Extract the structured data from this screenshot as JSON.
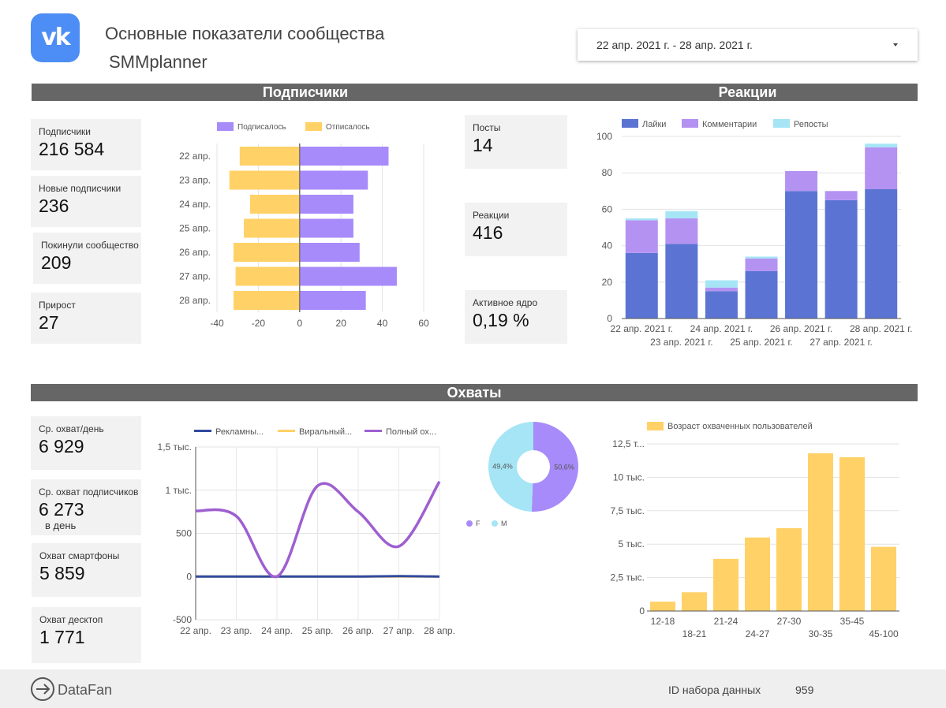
{
  "header": {
    "logo_text": "vk",
    "title": "Основные показатели сообщества",
    "subtitle": "SMMplanner",
    "date_range": "22 апр. 2021 г. - 28 апр. 2021 г."
  },
  "sections": {
    "subscribers": "Подписчики",
    "reactions": "Реакции",
    "reach": "Охваты"
  },
  "kpis_subscribers": [
    {
      "label": "Подписчики",
      "value": "216 584"
    },
    {
      "label": "Новые подписчики",
      "value": "236"
    },
    {
      "label": "Покинули сообщество",
      "value": "209"
    },
    {
      "label": "Прирост",
      "value": "27"
    }
  ],
  "kpis_posts": [
    {
      "label": "Посты",
      "value": "14"
    },
    {
      "label": "Реакции",
      "value": "416"
    },
    {
      "label": "Активное ядро",
      "value": "0,19 %"
    }
  ],
  "kpis_reach": [
    {
      "label": "Ср. охват/день",
      "value": "6 929"
    },
    {
      "label": "Ср. охват подписчиков",
      "value": "6 273",
      "suffix": "в день"
    },
    {
      "label": "Охват смартфоны",
      "value": "5 859"
    },
    {
      "label": "Охват десктоп",
      "value": "1 771"
    }
  ],
  "colors": {
    "purple": "#a78bfa",
    "yellow": "#ffd166",
    "blue": "#5b74d3",
    "light_purple": "#b492f2",
    "cyan": "#a5e5f5",
    "navy": "#2f4a9e",
    "line_purple": "#9e5fd0",
    "section_gray": "#666666"
  },
  "chart_data": [
    {
      "id": "subscribers_diverging",
      "type": "bar",
      "orientation": "horizontal",
      "categories": [
        "22 апр.",
        "23 апр.",
        "24 апр.",
        "25 апр.",
        "26 апр.",
        "27 апр.",
        "28 апр."
      ],
      "series": [
        {
          "name": "Подписалось",
          "values": [
            43,
            33,
            26,
            26,
            29,
            47,
            32
          ]
        },
        {
          "name": "Отписалось",
          "values": [
            -29,
            -34,
            -24,
            -27,
            -32,
            -31,
            -32
          ]
        }
      ],
      "xlim": [
        -40,
        60
      ],
      "xticks": [
        -40,
        -20,
        0,
        20,
        40,
        60
      ]
    },
    {
      "id": "reactions_stacked",
      "type": "bar",
      "stacked": true,
      "categories": [
        "22 апр. 2021 г.",
        "23 апр. 2021 г.",
        "24 апр. 2021 г.",
        "25 апр. 2021 г.",
        "26 апр. 2021 г.",
        "27 апр. 2021 г.",
        "28 апр. 2021 г."
      ],
      "series": [
        {
          "name": "Лайки",
          "values": [
            36,
            41,
            15,
            26,
            70,
            65,
            71
          ]
        },
        {
          "name": "Комментарии",
          "values": [
            18,
            14,
            2,
            7,
            11,
            5,
            23
          ]
        },
        {
          "name": "Репосты",
          "values": [
            1,
            4,
            4,
            1,
            0,
            0,
            2
          ]
        }
      ],
      "ylim": [
        0,
        100
      ],
      "yticks": [
        0,
        20,
        40,
        60,
        80,
        100
      ]
    },
    {
      "id": "reach_lines",
      "type": "line",
      "categories": [
        "22 апр.",
        "23 апр.",
        "24 апр.",
        "25 апр.",
        "26 апр.",
        "27 апр.",
        "28 апр."
      ],
      "series": [
        {
          "name": "Рекламны...",
          "values": [
            0,
            0,
            0,
            0,
            0,
            5,
            0
          ]
        },
        {
          "name": "Виральный...",
          "values": [
            0,
            0,
            0,
            0,
            0,
            0,
            0
          ]
        },
        {
          "name": "Полный ох...",
          "values": [
            760,
            700,
            0,
            1050,
            750,
            350,
            1100
          ]
        }
      ],
      "ylim": [
        -500,
        1500
      ],
      "yticks": [
        -500,
        0,
        500,
        1000,
        1500
      ],
      "ytick_labels": [
        "-500",
        "0",
        "500",
        "1 тыс.",
        "1,5 тыс."
      ]
    },
    {
      "id": "gender_donut",
      "type": "pie",
      "donut": true,
      "labels": [
        "F",
        "M"
      ],
      "values": [
        50.6,
        49.4
      ],
      "value_labels": [
        "50,6%",
        "49,4%"
      ]
    },
    {
      "id": "age_reach",
      "type": "bar",
      "legend": "Возраст охваченных пользователей",
      "categories": [
        "12-18",
        "18-21",
        "21-24",
        "24-27",
        "27-30",
        "30-35",
        "35-45",
        "45-100"
      ],
      "values": [
        700,
        1400,
        3900,
        5500,
        6200,
        11800,
        11500,
        4800
      ],
      "ylim": [
        0,
        12500
      ],
      "yticks": [
        0,
        2500,
        5000,
        7500,
        10000,
        12500
      ],
      "ytick_labels": [
        "0",
        "2,5 тыс.",
        "5 тыс.",
        "7,5 тыс.",
        "10 тыс.",
        "12,5 т..."
      ]
    }
  ],
  "footer": {
    "brand": "DataFan",
    "dataset_label": "ID набора данных",
    "dataset_value": "959"
  }
}
